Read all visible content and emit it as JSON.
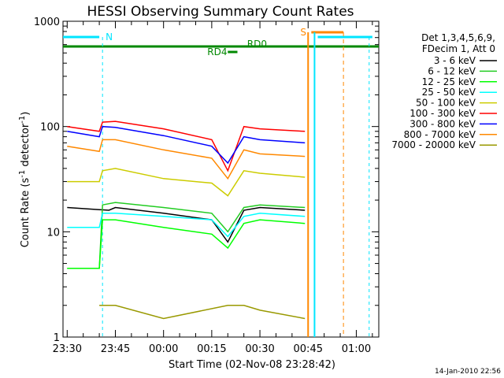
{
  "chart_data": {
    "type": "line",
    "title": "HESSI Observing Summary Count Rates",
    "xlabel": "Start Time (02-Nov-08 23:28:42)",
    "ylabel": "Count Rate (s⁻¹ detector⁻¹)",
    "ylabel_parts": {
      "base": "Count Rate (s",
      "sup1": "-1",
      "mid": " detector",
      "sup2": "-1",
      "end": ")"
    },
    "y_scale": "log",
    "ylim": [
      1,
      1000
    ],
    "xlim": [
      "23:28:42",
      "01:07:00"
    ],
    "x_ticks": [
      "23:30",
      "23:45",
      "00:00",
      "00:15",
      "00:30",
      "00:45",
      "01:00"
    ],
    "y_ticks": [
      "1",
      "10",
      "100",
      "1000"
    ],
    "legend_header": [
      "Det 1,3,4,5,6,9,",
      "FDecim 1, Att 0"
    ],
    "legend_position": "right",
    "series": [
      {
        "name": "3 - 6 keV",
        "color": "#000000",
        "x": [
          "23:30",
          "23:43",
          "23:45",
          "00:00",
          "00:15",
          "00:20",
          "00:25",
          "00:30",
          "00:44"
        ],
        "y": [
          17,
          16,
          17,
          15,
          13,
          8,
          16,
          17,
          16
        ]
      },
      {
        "name": "6 - 12 keV",
        "color": "#22cc22",
        "x": [
          "23:30",
          "23:40",
          "23:41",
          "23:45",
          "00:00",
          "00:15",
          "00:20",
          "00:25",
          "00:30",
          "00:44"
        ],
        "y": [
          4.5,
          4.5,
          18,
          19,
          17,
          15,
          10,
          17,
          18,
          17
        ]
      },
      {
        "name": "12 - 25 keV",
        "color": "#00ff00",
        "x": [
          "23:30",
          "23:40",
          "23:41",
          "23:45",
          "00:00",
          "00:15",
          "00:20",
          "00:25",
          "00:30",
          "00:44"
        ],
        "y": [
          4.5,
          4.5,
          13,
          13,
          11,
          9.5,
          7,
          12,
          13,
          12
        ]
      },
      {
        "name": "25 - 50 keV",
        "color": "#00ffff",
        "x": [
          "23:30",
          "23:40",
          "23:41",
          "23:45",
          "00:00",
          "00:15",
          "00:20",
          "00:25",
          "00:30",
          "00:44"
        ],
        "y": [
          11,
          11,
          15,
          15,
          14,
          13,
          9,
          14,
          15,
          14
        ]
      },
      {
        "name": "50 - 100 keV",
        "color": "#cccc00",
        "x": [
          "23:30",
          "23:40",
          "23:41",
          "23:45",
          "00:00",
          "00:15",
          "00:20",
          "00:25",
          "00:30",
          "00:44"
        ],
        "y": [
          30,
          30,
          38,
          40,
          32,
          29,
          22,
          38,
          36,
          33
        ]
      },
      {
        "name": "100 - 300 keV",
        "color": "#ff0000",
        "x": [
          "23:30",
          "23:40",
          "23:41",
          "23:45",
          "00:00",
          "00:15",
          "00:20",
          "00:25",
          "00:30",
          "00:44"
        ],
        "y": [
          100,
          90,
          110,
          112,
          95,
          75,
          38,
          100,
          95,
          90
        ]
      },
      {
        "name": "300 - 800 keV",
        "color": "#0000ff",
        "x": [
          "23:30",
          "23:40",
          "23:41",
          "23:45",
          "00:00",
          "00:15",
          "00:20",
          "00:25",
          "00:30",
          "00:44"
        ],
        "y": [
          90,
          80,
          100,
          98,
          82,
          65,
          45,
          80,
          75,
          70
        ]
      },
      {
        "name": "800 - 7000 keV",
        "color": "#ff8800",
        "x": [
          "23:30",
          "23:40",
          "23:41",
          "23:45",
          "00:00",
          "00:15",
          "00:20",
          "00:25",
          "00:30",
          "00:44"
        ],
        "y": [
          65,
          58,
          75,
          75,
          60,
          50,
          32,
          60,
          55,
          52
        ]
      },
      {
        "name": "7000 - 20000 keV",
        "color": "#999900",
        "x": [
          "23:40",
          "23:45",
          "00:00",
          "00:20",
          "00:25",
          "00:30",
          "00:44"
        ],
        "y": [
          2,
          2,
          1.5,
          2,
          2,
          1.8,
          1.5
        ]
      }
    ],
    "flag_bars": [
      {
        "label": "N",
        "color": "#00e5ff"
      },
      {
        "label": "S",
        "color": "#ff8800"
      },
      {
        "label": "RD0",
        "color": "#008800"
      },
      {
        "label": "RD4",
        "color": "#008800"
      }
    ],
    "footer_timestamp": "14-Jan-2010 22:56"
  },
  "colors": {
    "frame": "#000000",
    "night": "#00e5ff",
    "saa": "#ff8800",
    "decim": "#008800"
  }
}
